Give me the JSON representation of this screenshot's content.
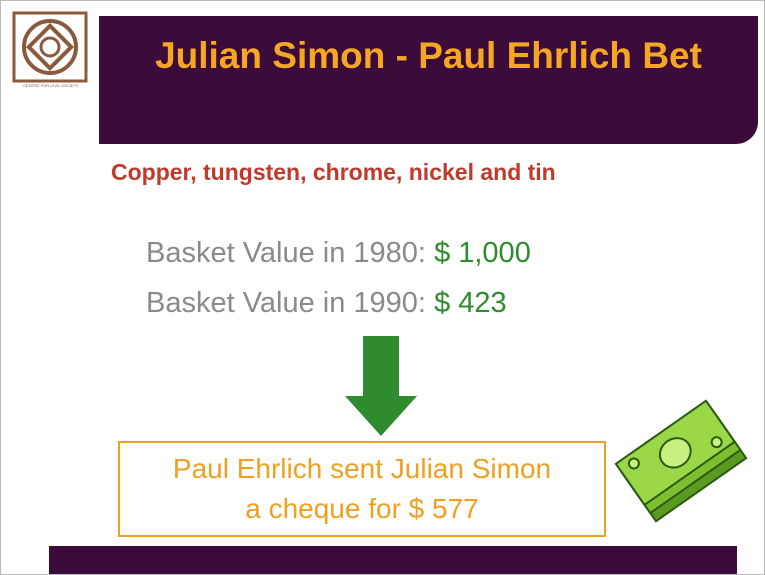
{
  "logo": {
    "caption": "CENTRE FOR CIVIL SOCIETY"
  },
  "slide": {
    "title": "Julian Simon - Paul Ehrlich Bet",
    "subtitle": "Copper, tungsten, chrome, nickel and tin",
    "items": [
      {
        "label": "Basket Value in 1980:",
        "value": "$ 1,000"
      },
      {
        "label": "Basket Value in 1990:",
        "value": "$ 423"
      }
    ],
    "conclusion": [
      "Paul Ehrlich sent Julian Simon",
      "a cheque for $ 577"
    ]
  }
}
